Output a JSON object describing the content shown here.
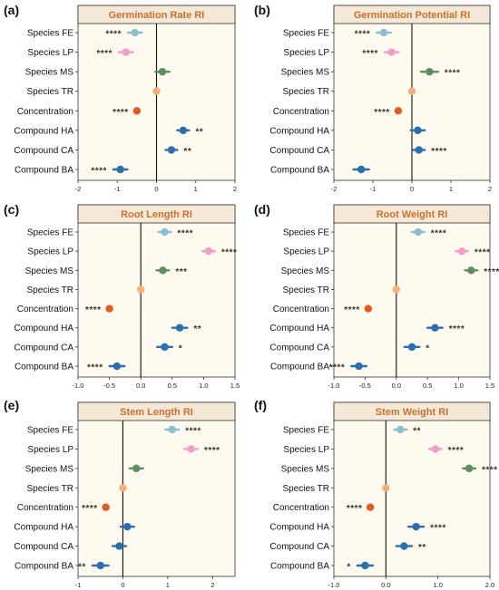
{
  "figure": {
    "accent_title_color": "#C8702E",
    "panel_bg": "#FFFAEF",
    "title_bg": "#F6E8D6",
    "colors": {
      "FE": "#8DBFD3",
      "LP": "#F39DC6",
      "MS": "#5B8E60",
      "TR": "#F4B07A",
      "Concentration": "#E05A22",
      "HA": "#2A6FAE",
      "CA": "#2A6FAE",
      "BA": "#2A6FAE"
    }
  },
  "chart_data": [
    {
      "type": "scatter",
      "panel_label": "(a)",
      "title": "Germination Rate RI",
      "categories": [
        "Species FE",
        "Species LP",
        "Species MS",
        "Species TR",
        "Concentration",
        "Compound HA",
        "Compound CA",
        "Compound BA"
      ],
      "keys": [
        "FE",
        "LP",
        "MS",
        "TR",
        "Concentration",
        "HA",
        "CA",
        "BA"
      ],
      "values": [
        -0.55,
        -0.78,
        0.15,
        0.0,
        -0.5,
        0.68,
        0.38,
        -0.92
      ],
      "errors": [
        0.18,
        0.18,
        0.18,
        0.05,
        0.05,
        0.15,
        0.15,
        0.18
      ],
      "sig": [
        "****",
        "****",
        "",
        "",
        "****",
        "**",
        "**",
        "****"
      ],
      "xlim": [
        -2,
        2
      ],
      "xticks": [
        -2,
        -1,
        0,
        1,
        2
      ]
    },
    {
      "type": "scatter",
      "panel_label": "(b)",
      "title": "Germination Potential RI",
      "categories": [
        "Species FE",
        "Species LP",
        "Species MS",
        "Species TR",
        "Concentration",
        "Compound HA",
        "Compound CA",
        "Compound BA"
      ],
      "keys": [
        "FE",
        "LP",
        "MS",
        "TR",
        "Concentration",
        "HA",
        "CA",
        "BA"
      ],
      "values": [
        -0.72,
        -0.52,
        0.45,
        0.0,
        -0.35,
        0.15,
        0.18,
        -1.3
      ],
      "errors": [
        0.18,
        0.18,
        0.22,
        0.05,
        0.05,
        0.18,
        0.15,
        0.2
      ],
      "sig": [
        "****",
        "****",
        "****",
        "",
        "****",
        "",
        "****",
        ""
      ],
      "xlim": [
        -2,
        2
      ],
      "xticks": [
        -2,
        -1,
        0,
        1,
        2
      ]
    },
    {
      "type": "scatter",
      "panel_label": "(c)",
      "title": "Root Length RI",
      "categories": [
        "Species FE",
        "Species LP",
        "Species MS",
        "Species TR",
        "Concentration",
        "Compound HA",
        "Compound CA",
        "Compound BA"
      ],
      "keys": [
        "FE",
        "LP",
        "MS",
        "TR",
        "Concentration",
        "HA",
        "CA",
        "BA"
      ],
      "values": [
        0.38,
        1.08,
        0.35,
        0.0,
        -0.5,
        0.62,
        0.38,
        -0.38
      ],
      "errors": [
        0.1,
        0.1,
        0.1,
        0.03,
        0.03,
        0.12,
        0.12,
        0.12
      ],
      "sig": [
        "****",
        "****",
        "***",
        "",
        "****",
        "**",
        "*",
        "****"
      ],
      "xlim": [
        -1.0,
        1.5
      ],
      "xticks": [
        -1.0,
        -0.5,
        0.0,
        0.5,
        1.0,
        1.5
      ]
    },
    {
      "type": "scatter",
      "panel_label": "(d)",
      "title": "Root Weight RI",
      "categories": [
        "Species FE",
        "Species LP",
        "Species MS",
        "Species TR",
        "Concentration",
        "Compound HA",
        "Compound CA",
        "Compound BA"
      ],
      "keys": [
        "FE",
        "LP",
        "MS",
        "TR",
        "Concentration",
        "HA",
        "CA",
        "BA"
      ],
      "values": [
        0.35,
        1.05,
        1.2,
        0.0,
        -0.45,
        0.62,
        0.25,
        -0.6
      ],
      "errors": [
        0.1,
        0.1,
        0.1,
        0.03,
        0.03,
        0.12,
        0.12,
        0.12
      ],
      "sig": [
        "****",
        "****",
        "****",
        "",
        "****",
        "****",
        "*",
        "****"
      ],
      "xlim": [
        -1.0,
        1.5
      ],
      "xticks": [
        -1.0,
        -0.5,
        0.0,
        0.5,
        1.0,
        1.5
      ]
    },
    {
      "type": "scatter",
      "panel_label": "(e)",
      "title": "Stem Length RI",
      "categories": [
        "Species FE",
        "Species LP",
        "Species MS",
        "Species TR",
        "Concentration",
        "Compound HA",
        "Compound CA",
        "Compound BA"
      ],
      "keys": [
        "FE",
        "LP",
        "MS",
        "TR",
        "Concentration",
        "HA",
        "CA",
        "BA"
      ],
      "values": [
        1.1,
        1.52,
        0.3,
        0.0,
        -0.38,
        0.1,
        -0.08,
        -0.5
      ],
      "errors": [
        0.15,
        0.15,
        0.15,
        0.04,
        0.04,
        0.15,
        0.15,
        0.18
      ],
      "sig": [
        "****",
        "****",
        "",
        "",
        "****",
        "",
        "",
        "**"
      ],
      "xlim": [
        -1,
        2.5
      ],
      "xticks": [
        -1,
        0,
        1,
        2
      ]
    },
    {
      "type": "scatter",
      "panel_label": "(f)",
      "title": "Stem Weight RI",
      "categories": [
        "Species FE",
        "Species LP",
        "Species MS",
        "Species TR",
        "Concentration",
        "Compound HA",
        "Compound CA",
        "Compound BA"
      ],
      "keys": [
        "FE",
        "LP",
        "MS",
        "TR",
        "Concentration",
        "HA",
        "CA",
        "BA"
      ],
      "values": [
        0.28,
        0.95,
        1.6,
        0.0,
        -0.3,
        0.58,
        0.35,
        -0.4
      ],
      "errors": [
        0.12,
        0.12,
        0.12,
        0.03,
        0.03,
        0.15,
        0.15,
        0.15
      ],
      "sig": [
        "**",
        "****",
        "****",
        "",
        "****",
        "****",
        "**",
        "*"
      ],
      "xlim": [
        -1,
        2
      ],
      "xticks": [
        -1,
        0,
        1,
        2
      ]
    }
  ]
}
